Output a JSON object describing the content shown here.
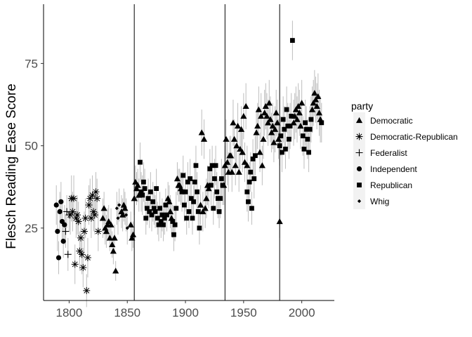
{
  "chart_data": {
    "type": "scatter",
    "title": "",
    "xlabel": "",
    "ylabel": "Flesch Reading Ease Score",
    "xlim": [
      1778,
      2028
    ],
    "ylim": [
      3,
      93
    ],
    "x_ticks": [
      1800,
      1850,
      1900,
      1950,
      2000
    ],
    "y_ticks": [
      25,
      50,
      75
    ],
    "x_tick_labels": [
      "1800",
      "1850",
      "1900",
      "1950",
      "2000"
    ],
    "y_tick_labels": [
      "25",
      "50",
      "75"
    ],
    "grid": false,
    "vertical_lines": [
      1856,
      1934,
      1981
    ],
    "legend": {
      "title": "party",
      "position": "right"
    },
    "colors": {
      "points": "#000000",
      "error_bars": "#bdbdbd",
      "legend_key_bg": "#f2f2f2"
    },
    "series": [
      {
        "name": "Democratic",
        "shape": "triangle",
        "points": [
          [
            1829,
            28,
            6
          ],
          [
            1830,
            31,
            5
          ],
          [
            1831,
            25,
            5
          ],
          [
            1832,
            24,
            5
          ],
          [
            1833,
            26,
            5
          ],
          [
            1834,
            27,
            5
          ],
          [
            1835,
            22,
            4
          ],
          [
            1836,
            26,
            5
          ],
          [
            1837,
            20,
            4
          ],
          [
            1838,
            18,
            4
          ],
          [
            1839,
            22,
            4
          ],
          [
            1840,
            12,
            3
          ],
          [
            1845,
            30,
            5
          ],
          [
            1846,
            29,
            5
          ],
          [
            1847,
            32,
            5
          ],
          [
            1848,
            31,
            5
          ],
          [
            1853,
            26,
            4
          ],
          [
            1854,
            22,
            4
          ],
          [
            1855,
            23,
            4
          ],
          [
            1856,
            34,
            5
          ],
          [
            1857,
            39,
            5
          ],
          [
            1858,
            37,
            5
          ],
          [
            1859,
            38,
            5
          ],
          [
            1860,
            35,
            5
          ],
          [
            1885,
            34,
            5
          ],
          [
            1886,
            33,
            5
          ],
          [
            1887,
            30,
            5
          ],
          [
            1888,
            28,
            5
          ],
          [
            1893,
            40,
            5
          ],
          [
            1894,
            38,
            5
          ],
          [
            1895,
            38,
            5
          ],
          [
            1896,
            37,
            5
          ],
          [
            1913,
            32,
            6
          ],
          [
            1914,
            54,
            7
          ],
          [
            1915,
            30,
            6
          ],
          [
            1916,
            52,
            6
          ],
          [
            1917,
            31,
            6
          ],
          [
            1918,
            34,
            6
          ],
          [
            1919,
            38,
            6
          ],
          [
            1920,
            37,
            6
          ],
          [
            1933,
            38,
            6
          ],
          [
            1934,
            44,
            6
          ],
          [
            1935,
            52,
            6
          ],
          [
            1936,
            45,
            7
          ],
          [
            1937,
            42,
            6
          ],
          [
            1938,
            47,
            6
          ],
          [
            1939,
            47,
            6
          ],
          [
            1940,
            42,
            6
          ],
          [
            1941,
            57,
            7
          ],
          [
            1942,
            52,
            6
          ],
          [
            1943,
            44,
            6
          ],
          [
            1944,
            50,
            6
          ],
          [
            1945,
            56,
            7
          ],
          [
            1946,
            42,
            6
          ],
          [
            1947,
            49,
            6
          ],
          [
            1948,
            55,
            7
          ],
          [
            1949,
            48,
            6
          ],
          [
            1950,
            59,
            7
          ],
          [
            1951,
            45,
            6
          ],
          [
            1952,
            62,
            7
          ],
          [
            1953,
            44,
            6
          ],
          [
            1961,
            54,
            7
          ],
          [
            1962,
            56,
            7
          ],
          [
            1963,
            61,
            7
          ],
          [
            1964,
            48,
            6
          ],
          [
            1965,
            59,
            7
          ],
          [
            1966,
            44,
            6
          ],
          [
            1967,
            52,
            6
          ],
          [
            1968,
            60,
            7
          ],
          [
            1969,
            62,
            7
          ],
          [
            1970,
            59,
            7
          ],
          [
            1971,
            57,
            7
          ],
          [
            1972,
            63,
            7
          ],
          [
            1973,
            58,
            7
          ],
          [
            1974,
            54,
            6
          ],
          [
            1975,
            56,
            7
          ],
          [
            1976,
            51,
            6
          ],
          [
            1977,
            55,
            7
          ],
          [
            1978,
            60,
            7
          ],
          [
            1979,
            57,
            7
          ],
          [
            1980,
            52,
            6
          ],
          [
            1981,
            27,
            5
          ],
          [
            1993,
            57,
            7
          ],
          [
            1994,
            59,
            7
          ],
          [
            1995,
            61,
            7
          ],
          [
            1996,
            58,
            7
          ],
          [
            1997,
            62,
            7
          ],
          [
            1998,
            60,
            7
          ],
          [
            1999,
            56,
            7
          ],
          [
            2000,
            63,
            7
          ],
          [
            2009,
            61,
            7
          ],
          [
            2010,
            63,
            7
          ],
          [
            2011,
            66,
            7
          ],
          [
            2012,
            64,
            7
          ],
          [
            2013,
            62,
            7
          ],
          [
            2014,
            65,
            7
          ],
          [
            2015,
            60,
            7
          ],
          [
            2016,
            58,
            7
          ]
        ]
      },
      {
        "name": "Democratic-Republican",
        "shape": "asterisk",
        "points": [
          [
            1801,
            29,
            6
          ],
          [
            1802,
            34,
            7
          ],
          [
            1803,
            30,
            6
          ],
          [
            1804,
            34,
            7
          ],
          [
            1805,
            14,
            6
          ],
          [
            1806,
            28,
            6
          ],
          [
            1807,
            29,
            6
          ],
          [
            1808,
            27,
            6
          ],
          [
            1809,
            18,
            6
          ],
          [
            1810,
            22,
            6
          ],
          [
            1811,
            17,
            6
          ],
          [
            1812,
            13,
            6
          ],
          [
            1813,
            24,
            6
          ],
          [
            1814,
            28,
            6
          ],
          [
            1815,
            6,
            5
          ],
          [
            1816,
            16,
            6
          ],
          [
            1817,
            32,
            6
          ],
          [
            1818,
            34,
            6
          ],
          [
            1819,
            28,
            6
          ],
          [
            1820,
            35,
            6
          ],
          [
            1821,
            30,
            6
          ],
          [
            1822,
            29,
            6
          ],
          [
            1823,
            36,
            6
          ],
          [
            1824,
            34,
            6
          ],
          [
            1825,
            24,
            6
          ]
        ]
      },
      {
        "name": "Federalist",
        "shape": "plus",
        "points": [
          [
            1797,
            24,
            5
          ],
          [
            1798,
            30,
            5
          ],
          [
            1799,
            17,
            5
          ],
          [
            1800,
            29,
            5
          ]
        ]
      },
      {
        "name": "Independent",
        "shape": "circle",
        "points": [
          [
            1789,
            32,
            6
          ],
          [
            1790,
            24,
            6
          ],
          [
            1791,
            16,
            5
          ],
          [
            1792,
            30,
            6
          ],
          [
            1793,
            33,
            6
          ],
          [
            1794,
            27,
            6
          ],
          [
            1795,
            21,
            5
          ],
          [
            1796,
            26,
            6
          ]
        ]
      },
      {
        "name": "Republican",
        "shape": "square",
        "points": [
          [
            1861,
            45,
            6
          ],
          [
            1862,
            36,
            6
          ],
          [
            1863,
            35,
            6
          ],
          [
            1864,
            39,
            6
          ],
          [
            1865,
            37,
            6
          ],
          [
            1866,
            28,
            5
          ],
          [
            1867,
            31,
            5
          ],
          [
            1868,
            34,
            6
          ],
          [
            1869,
            30,
            5
          ],
          [
            1870,
            36,
            6
          ],
          [
            1871,
            29,
            5
          ],
          [
            1872,
            33,
            6
          ],
          [
            1873,
            31,
            5
          ],
          [
            1874,
            30,
            5
          ],
          [
            1875,
            37,
            6
          ],
          [
            1876,
            28,
            5
          ],
          [
            1877,
            26,
            5
          ],
          [
            1878,
            31,
            5
          ],
          [
            1879,
            27,
            5
          ],
          [
            1880,
            29,
            5
          ],
          [
            1881,
            26,
            5
          ],
          [
            1882,
            28,
            5
          ],
          [
            1883,
            32,
            5
          ],
          [
            1884,
            29,
            5
          ],
          [
            1889,
            27,
            5
          ],
          [
            1890,
            23,
            5
          ],
          [
            1891,
            26,
            5
          ],
          [
            1892,
            31,
            5
          ],
          [
            1897,
            36,
            6
          ],
          [
            1898,
            41,
            6
          ],
          [
            1899,
            32,
            5
          ],
          [
            1900,
            36,
            6
          ],
          [
            1901,
            28,
            5
          ],
          [
            1902,
            39,
            6
          ],
          [
            1903,
            30,
            5
          ],
          [
            1904,
            40,
            6
          ],
          [
            1905,
            34,
            6
          ],
          [
            1906,
            28,
            5
          ],
          [
            1907,
            33,
            5
          ],
          [
            1908,
            39,
            6
          ],
          [
            1909,
            44,
            6
          ],
          [
            1910,
            36,
            6
          ],
          [
            1911,
            30,
            5
          ],
          [
            1912,
            25,
            5
          ],
          [
            1921,
            43,
            6
          ],
          [
            1922,
            38,
            6
          ],
          [
            1923,
            44,
            6
          ],
          [
            1924,
            31,
            5
          ],
          [
            1925,
            40,
            6
          ],
          [
            1926,
            44,
            6
          ],
          [
            1927,
            36,
            6
          ],
          [
            1928,
            34,
            6
          ],
          [
            1929,
            30,
            5
          ],
          [
            1930,
            34,
            6
          ],
          [
            1931,
            40,
            6
          ],
          [
            1932,
            38,
            6
          ],
          [
            1953,
            36,
            6
          ],
          [
            1954,
            33,
            6
          ],
          [
            1955,
            39,
            6
          ],
          [
            1956,
            42,
            6
          ],
          [
            1957,
            31,
            5
          ],
          [
            1958,
            46,
            6
          ],
          [
            1959,
            40,
            6
          ],
          [
            1960,
            47,
            6
          ],
          [
            1981,
            50,
            6
          ],
          [
            1982,
            53,
            6
          ],
          [
            1983,
            48,
            6
          ],
          [
            1984,
            58,
            7
          ],
          [
            1985,
            55,
            7
          ],
          [
            1986,
            49,
            6
          ],
          [
            1987,
            61,
            7
          ],
          [
            1988,
            56,
            7
          ],
          [
            1989,
            52,
            6
          ],
          [
            1990,
            56,
            7
          ],
          [
            1991,
            59,
            7
          ],
          [
            1992,
            82,
            6
          ],
          [
            2001,
            53,
            6
          ],
          [
            2002,
            49,
            6
          ],
          [
            2003,
            57,
            7
          ],
          [
            2004,
            55,
            7
          ],
          [
            2005,
            52,
            6
          ],
          [
            2006,
            48,
            6
          ],
          [
            2007,
            55,
            7
          ],
          [
            2008,
            58,
            7
          ],
          [
            2017,
            57,
            6
          ]
        ]
      },
      {
        "name": "Whig",
        "shape": "diamond",
        "points": [
          [
            1841,
            31,
            5
          ],
          [
            1842,
            28,
            5
          ],
          [
            1843,
            32,
            5
          ],
          [
            1849,
            29,
            5
          ],
          [
            1850,
            25,
            5
          ]
        ]
      }
    ]
  }
}
